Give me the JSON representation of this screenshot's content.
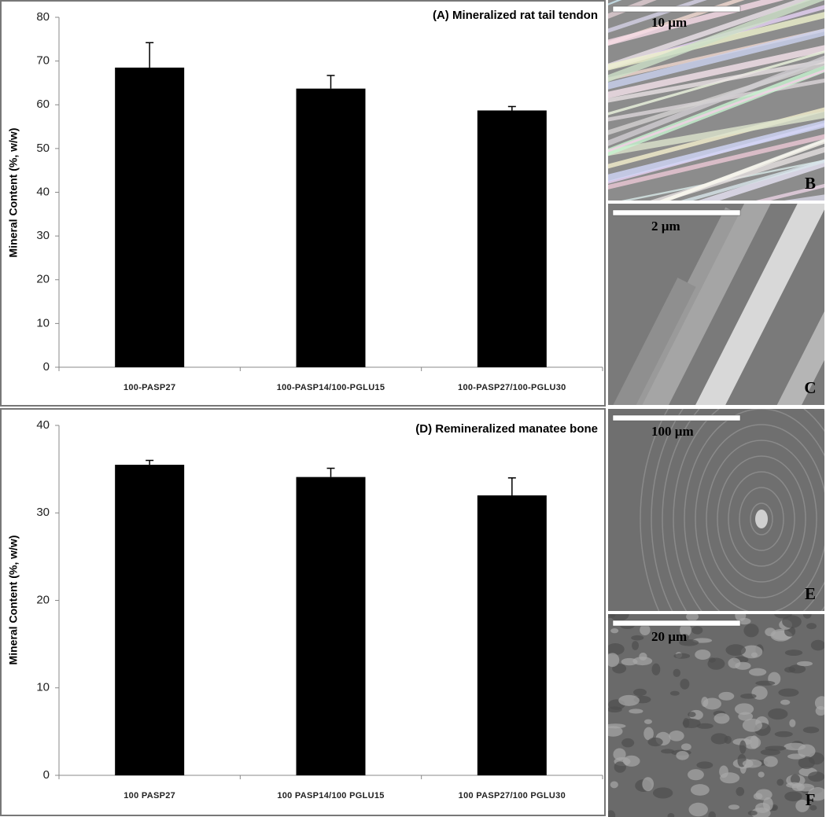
{
  "chart_data": [
    {
      "type": "bar",
      "title": "(A) Mineralized rat tail tendon",
      "y_label": "Mineral Content (%, w/w)",
      "categories": [
        "100-PASP27",
        "100-PASP14/100-PGLU15",
        "100-PASP27/100-PGLU30"
      ],
      "values": [
        68.5,
        63.7,
        58.7
      ],
      "errors": [
        5.7,
        3.0,
        0.9
      ],
      "color": "#000000",
      "ylim": [
        0,
        80
      ],
      "yticks": [
        0,
        10,
        20,
        30,
        40,
        50,
        60,
        70,
        80
      ],
      "grid": false
    },
    {
      "type": "bar",
      "title": "(D) Remineralized manatee bone",
      "y_label": "Mineral Content (%, w/w)",
      "categories": [
        "100 PASP27",
        "100 PASP14/100 PGLU15",
        "100 PASP27/100 PGLU30"
      ],
      "values": [
        35.5,
        34.1,
        32.0
      ],
      "errors": [
        0.5,
        1.0,
        2.0
      ],
      "color": "#000000",
      "ylim": [
        0,
        40
      ],
      "yticks": [
        0,
        10,
        20,
        30,
        40
      ],
      "grid": false
    }
  ],
  "images": [
    {
      "scale_label": "10 µm",
      "letter": "B"
    },
    {
      "scale_label": "2 µm",
      "letter": "C"
    },
    {
      "scale_label": "100 µm",
      "letter": "E"
    },
    {
      "scale_label": "20 µm",
      "letter": "F"
    }
  ]
}
